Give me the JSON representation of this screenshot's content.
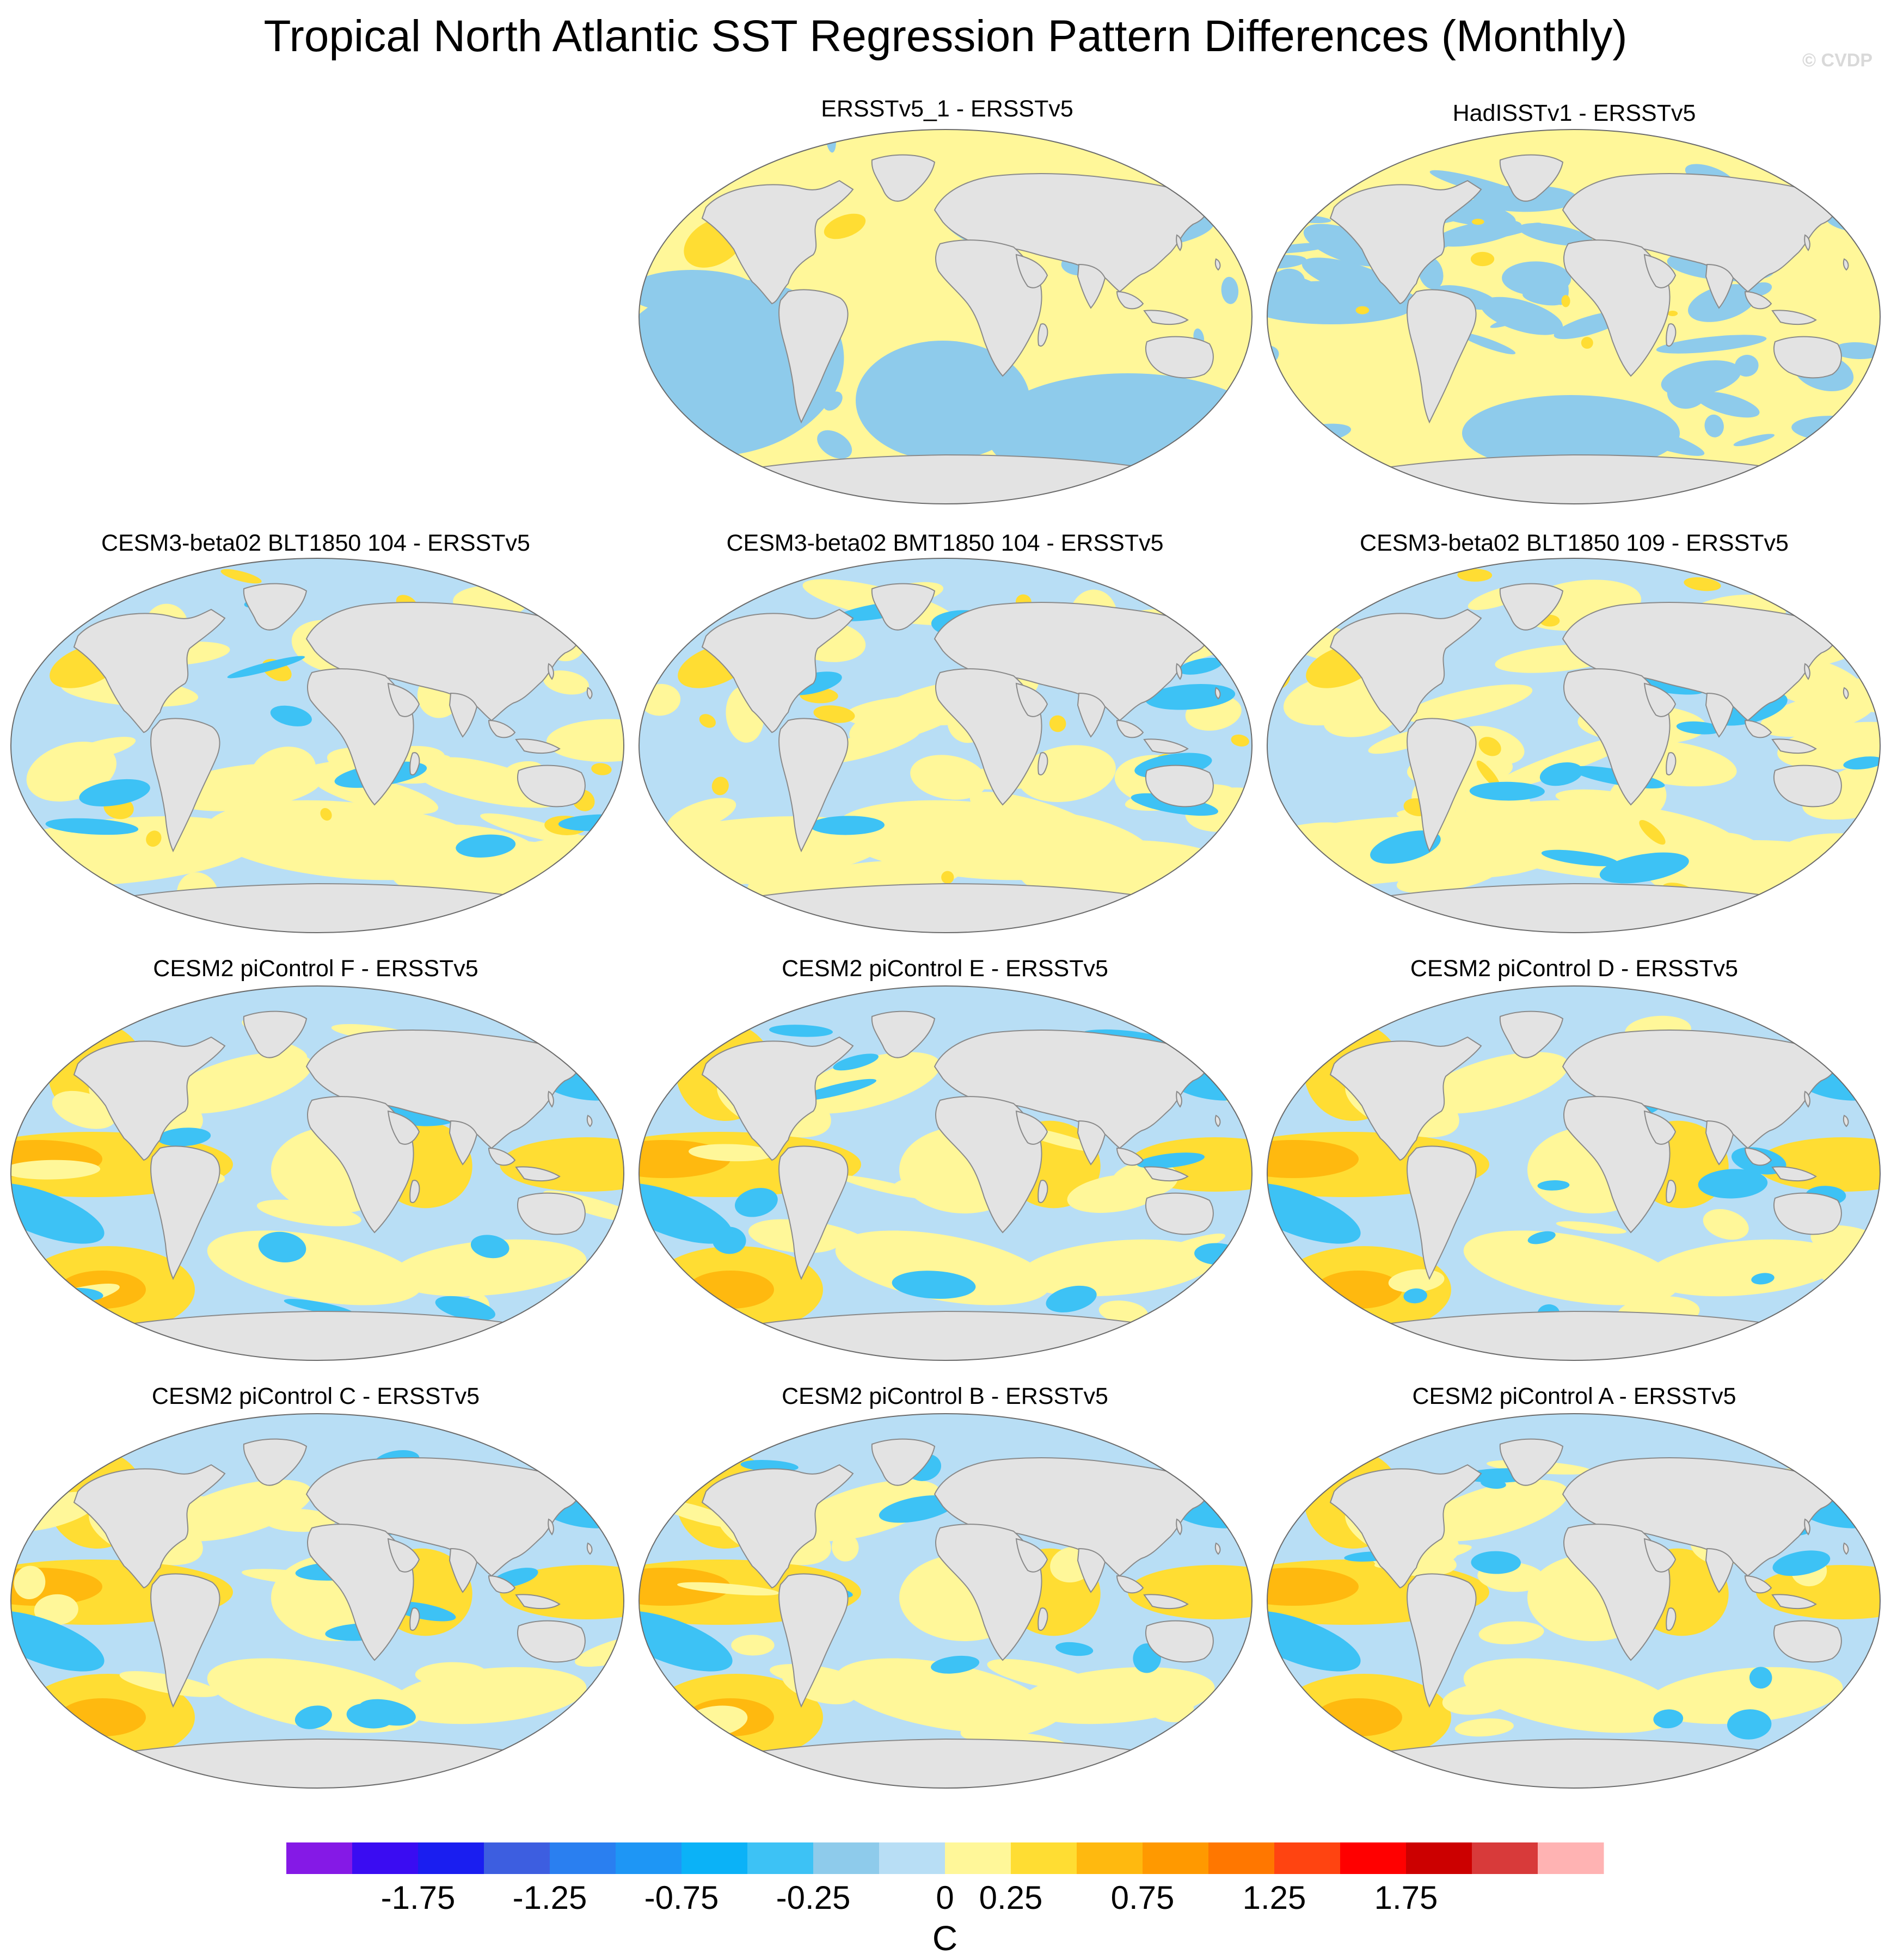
{
  "title": "Tropical North Atlantic SST Regression Pattern Differences (Monthly)",
  "copyright": "© CVDP",
  "panels": [
    {
      "id": "p1",
      "title": "ERSSTv5_1 - ERSSTv5",
      "style": "calm",
      "seed": 3
    },
    {
      "id": "p2",
      "title": "HadISSTv1 - ERSSTv5",
      "style": "noisy",
      "seed": 7
    },
    {
      "id": "p3",
      "title": "CESM3-beta02 BLT1850 104 - ERSSTv5",
      "style": "model",
      "seed": 11
    },
    {
      "id": "p4",
      "title": "CESM3-beta02 BMT1850 104 - ERSSTv5",
      "style": "model",
      "seed": 17
    },
    {
      "id": "p5",
      "title": "CESM3-beta02 BLT1850 109 - ERSSTv5",
      "style": "model",
      "seed": 23
    },
    {
      "id": "p6",
      "title": "CESM2 piControl F - ERSSTv5",
      "style": "enso",
      "seed": 29
    },
    {
      "id": "p7",
      "title": "CESM2 piControl E - ERSSTv5",
      "style": "enso",
      "seed": 31
    },
    {
      "id": "p8",
      "title": "CESM2 piControl D - ERSSTv5",
      "style": "enso",
      "seed": 37
    },
    {
      "id": "p9",
      "title": "CESM2 piControl C - ERSSTv5",
      "style": "enso",
      "seed": 41
    },
    {
      "id": "p10",
      "title": "CESM2 piControl B - ERSSTv5",
      "style": "enso",
      "seed": 43
    },
    {
      "id": "p11",
      "title": "CESM2 piControl A - ERSSTv5",
      "style": "enso",
      "seed": 47
    }
  ],
  "colorbar": {
    "unit": "C",
    "tick_labels": [
      "-1.75",
      "-1.25",
      "-0.75",
      "-0.25",
      "0",
      "0.25",
      "0.75",
      "1.25",
      "1.75"
    ],
    "colors": [
      "#8519e6",
      "#3a0cf2",
      "#1a1ef0",
      "#3d5ee0",
      "#2a7ff0",
      "#1e96f5",
      "#0bb2f7",
      "#3dc2f5",
      "#8ecbeb",
      "#b8def5",
      "#fff799",
      "#ffdd33",
      "#ffb90f",
      "#ff9900",
      "#ff7700",
      "#ff4411",
      "#ff0000",
      "#cc0000",
      "#d83a3a",
      "#ffb3b3"
    ]
  }
}
